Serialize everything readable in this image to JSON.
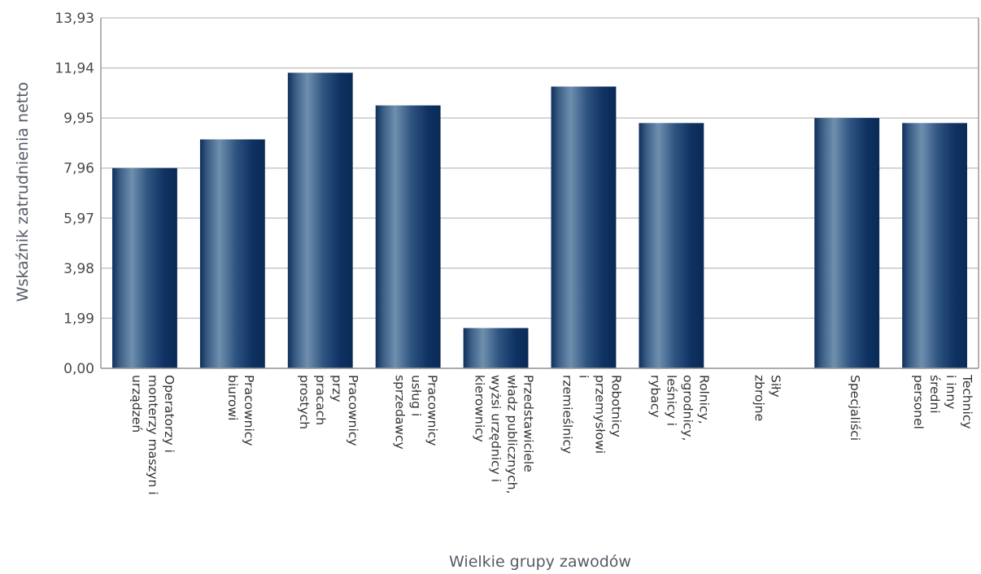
{
  "chart_data": {
    "type": "bar",
    "title": "",
    "xlabel": "Wielkie grupy zawodów",
    "ylabel": "Wskaźnik zatrudnienia netto",
    "ylim": [
      0,
      13.93
    ],
    "yticks": [
      "0,00",
      "1,99",
      "3,98",
      "5,97",
      "7,96",
      "9,95",
      "11,94",
      "13,93"
    ],
    "ytick_values": [
      0,
      1.99,
      3.98,
      5.97,
      7.96,
      9.95,
      11.94,
      13.93
    ],
    "grid": true,
    "legend": "none",
    "categories": [
      "Operatorzy i monterzy maszyn i urządzeń",
      "Pracownicy biurowi",
      "Pracownicy przy pracach prostych",
      "Pracownicy usług i sprzedawcy",
      "Przedstawiciele władz publicznych, wyżsi urzędnicy i kierownicy",
      "Robotnicy przemysłowi i rzemieślnicy",
      "Rolnicy, ogrodnicy, leśnicy i rybacy",
      "Siły zbrojne",
      "Specjaliści",
      "Technicy i inny średni personel"
    ],
    "category_lines": [
      [
        "Operatorzy i",
        "monterzy maszyn i",
        "urządzeń"
      ],
      [
        "Pracownicy",
        "biurowi"
      ],
      [
        "Pracownicy",
        "przy",
        "pracach",
        "prostych"
      ],
      [
        "Pracownicy",
        "usług i",
        "sprzedawcy"
      ],
      [
        "Przedstawiciele",
        "władz publicznych,",
        "wyżsi urzędnicy i",
        "kierownicy"
      ],
      [
        "Robotnicy",
        "przemysłowi",
        "i",
        "rzemieślnicy"
      ],
      [
        "Rolnicy,",
        "ogrodnicy,",
        "leśnicy i",
        "rybacy"
      ],
      [
        "Siły",
        "zbrojne"
      ],
      [
        "Specjaliści"
      ],
      [
        "Technicy",
        "i inny",
        "średni",
        "personel"
      ]
    ],
    "values": [
      7.96,
      9.1,
      11.75,
      10.45,
      1.6,
      11.2,
      9.75,
      0,
      9.95,
      9.75
    ],
    "colors": {
      "bar_dark": "#0e2f5c",
      "bar_light": "#6f8fae",
      "grid": "#c8c8c8"
    }
  }
}
